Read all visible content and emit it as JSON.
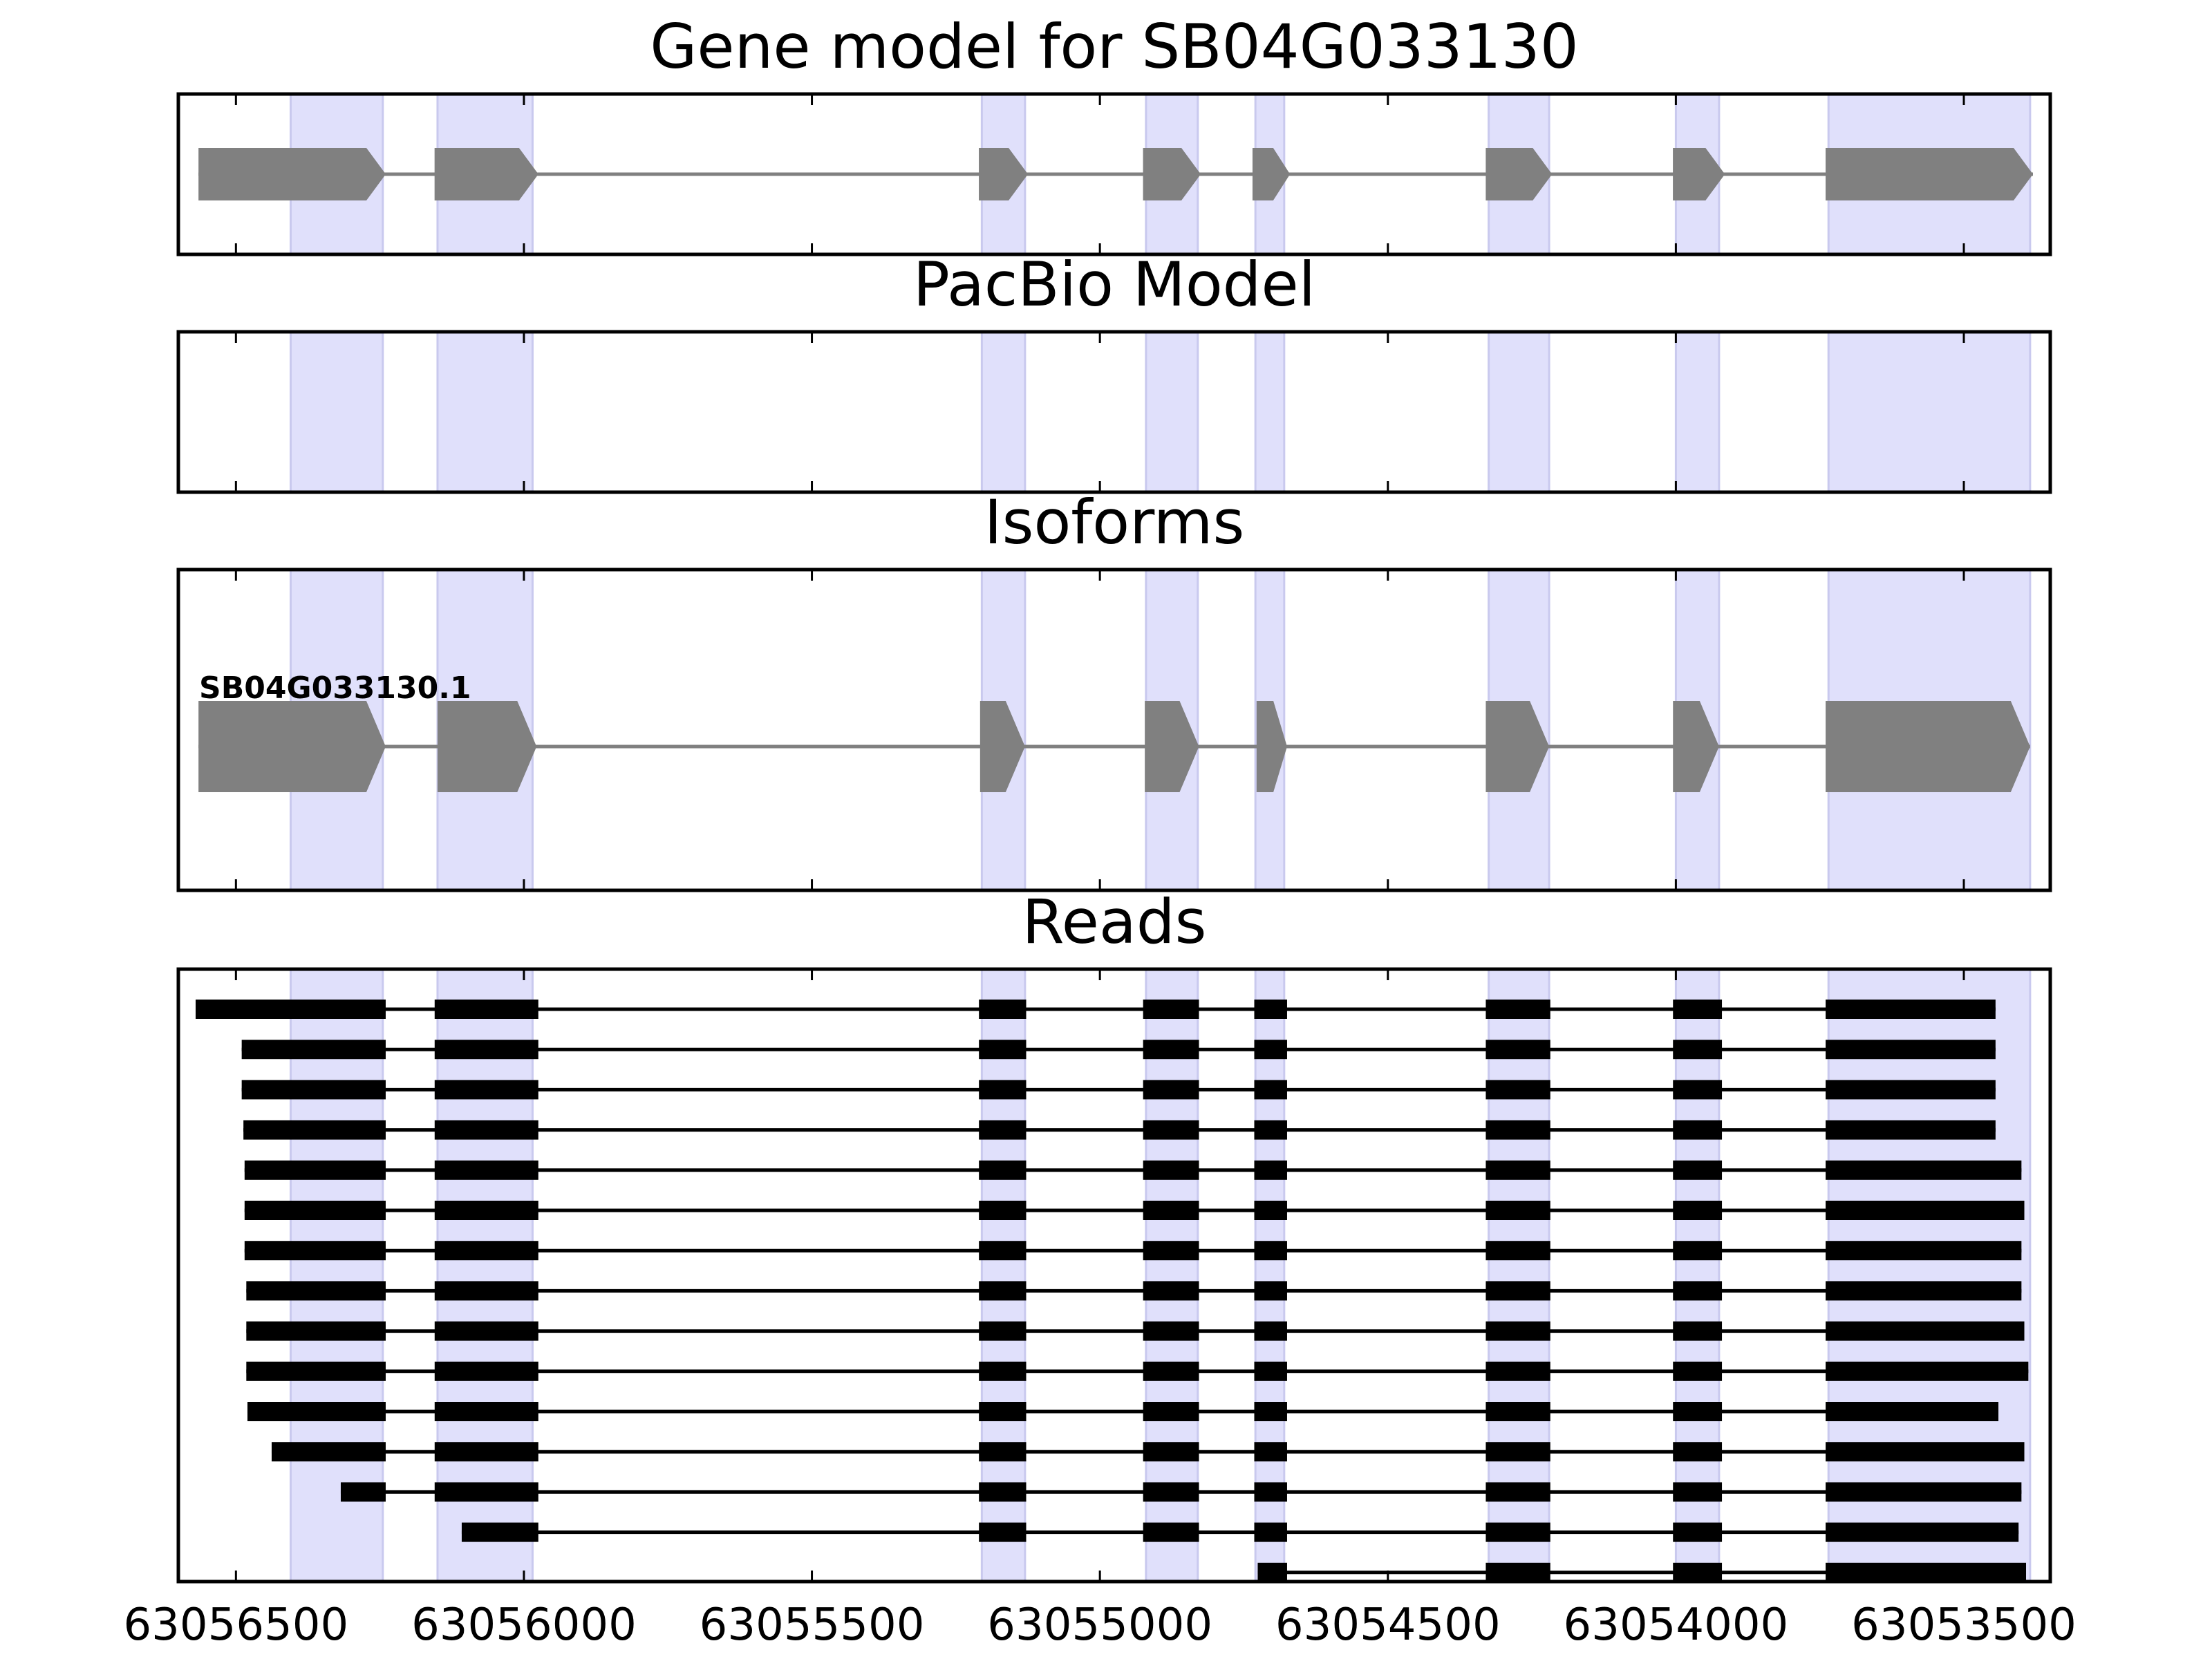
{
  "chart_data": {
    "type": "gene_model",
    "xlim": [
      63056600,
      63053350
    ],
    "x_ticks": [
      63056500,
      63056000,
      63055500,
      63055000,
      63054500,
      63054000,
      63053500
    ],
    "x_tick_labels": [
      "63056500",
      "63056000",
      "63055500",
      "63055000",
      "63054500",
      "63054000",
      "63053500"
    ],
    "highlight_color": "#e0e0fb",
    "feature_color": "#808080",
    "read_color": "#000000",
    "highlight_regions": [
      [
        63056405,
        63056245
      ],
      [
        63056150,
        63055985
      ],
      [
        63055205,
        63055130
      ],
      [
        63054920,
        63054830
      ],
      [
        63054730,
        63054680
      ],
      [
        63054325,
        63054220
      ],
      [
        63054000,
        63053925
      ],
      [
        63053735,
        63053385
      ]
    ],
    "panels": [
      {
        "title": "Gene model for SB04G033130",
        "exons": [
          [
            63056410,
            63056240
          ],
          [
            63056155,
            63055975
          ],
          [
            63055210,
            63055125
          ],
          [
            63054925,
            63054825
          ],
          [
            63054735,
            63054670
          ],
          [
            63054330,
            63054215
          ],
          [
            63054005,
            63053915
          ],
          [
            63053740,
            63053380
          ]
        ]
      },
      {
        "title": "PacBio Model",
        "exons": [
          [
            63056565,
            63056240
          ],
          [
            63056155,
            63055975
          ],
          [
            63055210,
            63055125
          ],
          [
            63054925,
            63054825
          ],
          [
            63054735,
            63054670
          ],
          [
            63054330,
            63054215
          ],
          [
            63054005,
            63053915
          ],
          [
            63053740,
            63053385
          ]
        ]
      },
      {
        "title": "Isoforms",
        "isoforms": [
          {
            "name": "SB04G033130.1",
            "exons": [
              [
                63056565,
                63056240
              ],
              [
                63056150,
                63055978
              ],
              [
                63055208,
                63055130
              ],
              [
                63054922,
                63054828
              ],
              [
                63054728,
                63054675
              ],
              [
                63054330,
                63054220
              ],
              [
                63054005,
                63053925
              ],
              [
                63053740,
                63053385
              ]
            ]
          }
        ]
      },
      {
        "title": "Reads",
        "reads": [
          {
            "start": 63056570,
            "end": 63053445
          },
          {
            "start": 63056490,
            "end": 63053445
          },
          {
            "start": 63056490,
            "end": 63053445
          },
          {
            "start": 63056487,
            "end": 63053445
          },
          {
            "start": 63056485,
            "end": 63053400
          },
          {
            "start": 63056485,
            "end": 63053395
          },
          {
            "start": 63056485,
            "end": 63053400
          },
          {
            "start": 63056482,
            "end": 63053400
          },
          {
            "start": 63056482,
            "end": 63053395
          },
          {
            "start": 63056482,
            "end": 63053388
          },
          {
            "start": 63056480,
            "end": 63053440
          },
          {
            "start": 63056438,
            "end": 63053395
          },
          {
            "start": 63056318,
            "end": 63053400
          },
          {
            "start": 63056108,
            "end": 63053405
          },
          {
            "start": 63054726,
            "end": 63053392
          }
        ],
        "read_exons": [
          [
            63056240,
            63056240
          ],
          [
            63056155,
            63055975
          ],
          [
            63055210,
            63055128
          ],
          [
            63054925,
            63054828
          ],
          [
            63054732,
            63054675
          ],
          [
            63054330,
            63054218
          ],
          [
            63054005,
            63053920
          ],
          [
            63053740,
            63053380
          ]
        ]
      }
    ]
  }
}
